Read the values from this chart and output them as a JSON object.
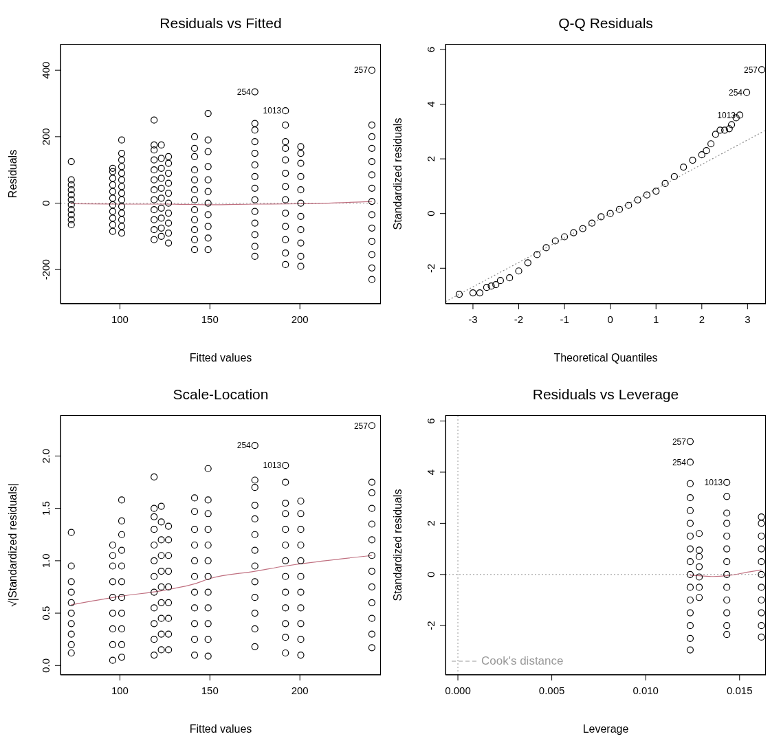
{
  "chart_data": [
    {
      "type": "scatter",
      "title": "Residuals vs Fitted",
      "xlabel": "Fitted values",
      "ylabel": "Residuals",
      "xlim": [
        67,
        245
      ],
      "xticks": [
        100,
        150,
        200
      ],
      "ylim": [
        -303,
        479
      ],
      "yticks": [
        -200,
        0,
        200,
        400
      ],
      "marker": "circle",
      "series": [
        {
          "color": "#000000",
          "x": [
            73,
            73,
            73,
            73,
            73,
            73,
            73,
            73,
            73,
            73,
            73
          ],
          "values": [
            -65,
            -50,
            -35,
            -20,
            -5,
            10,
            25,
            40,
            55,
            70,
            125
          ]
        },
        {
          "color": "#000000",
          "x": [
            96,
            96,
            96,
            96,
            96,
            96,
            96,
            96,
            96,
            96,
            96
          ],
          "values": [
            -85,
            -65,
            -45,
            -25,
            -5,
            15,
            35,
            55,
            75,
            95,
            105
          ]
        },
        {
          "color": "#000000",
          "x": [
            101,
            101,
            101,
            101,
            101,
            101,
            101,
            101,
            101,
            101,
            101,
            101,
            101,
            101
          ],
          "values": [
            -90,
            -70,
            -50,
            -30,
            -10,
            10,
            30,
            50,
            70,
            90,
            110,
            130,
            150,
            190
          ]
        },
        {
          "color": "#000000",
          "x": [
            119,
            119,
            119,
            119,
            119,
            119,
            119,
            119,
            119,
            119,
            119,
            119
          ],
          "values": [
            -110,
            -80,
            -50,
            -20,
            10,
            40,
            70,
            100,
            130,
            160,
            175,
            250
          ]
        },
        {
          "color": "#000000",
          "x": [
            123,
            123,
            123,
            123,
            123,
            123,
            123,
            123,
            123,
            123
          ],
          "values": [
            -100,
            -75,
            -45,
            -15,
            15,
            45,
            75,
            105,
            135,
            175
          ]
        },
        {
          "color": "#000000",
          "x": [
            127,
            127,
            127,
            127,
            127,
            127,
            127,
            127,
            127,
            127
          ],
          "values": [
            -120,
            -90,
            -60,
            -30,
            0,
            30,
            60,
            90,
            120,
            140
          ]
        },
        {
          "color": "#000000",
          "x": [
            141.5,
            141.5,
            141.5,
            141.5,
            141.5,
            141.5,
            141.5,
            141.5,
            141.5,
            141.5,
            141.5,
            141.5
          ],
          "values": [
            -140,
            -110,
            -80,
            -50,
            -20,
            10,
            40,
            70,
            100,
            140,
            165,
            200
          ]
        },
        {
          "color": "#000000",
          "x": [
            149,
            149,
            149,
            149,
            149,
            149,
            149,
            149,
            149,
            149,
            149
          ],
          "values": [
            -140,
            -105,
            -70,
            -35,
            0,
            35,
            70,
            110,
            155,
            190,
            270
          ]
        },
        {
          "color": "#000000",
          "x": [
            175,
            175,
            175,
            175,
            175,
            175,
            175,
            175,
            175,
            175,
            175,
            175,
            175,
            175
          ],
          "values": [
            -160,
            -130,
            -95,
            -60,
            -25,
            10,
            45,
            80,
            115,
            150,
            185,
            220,
            240,
            335
          ]
        },
        {
          "color": "#000000",
          "x": [
            192,
            192,
            192,
            192,
            192,
            192,
            192,
            192,
            192,
            192,
            192,
            192,
            192
          ],
          "values": [
            -185,
            -150,
            -110,
            -70,
            -30,
            10,
            50,
            90,
            130,
            165,
            185,
            235,
            278
          ]
        },
        {
          "color": "#000000",
          "x": [
            200.5,
            200.5,
            200.5,
            200.5,
            200.5,
            200.5,
            200.5,
            200.5,
            200.5,
            200.5,
            200.5
          ],
          "values": [
            -190,
            -160,
            -120,
            -80,
            -40,
            0,
            40,
            80,
            120,
            150,
            170
          ]
        },
        {
          "color": "#000000",
          "x": [
            240,
            240,
            240,
            240,
            240,
            240,
            240,
            240,
            240,
            240,
            240,
            240,
            240,
            240
          ],
          "values": [
            -230,
            -195,
            -155,
            -115,
            -75,
            -35,
            5,
            45,
            85,
            125,
            165,
            200,
            235,
            400
          ]
        },
        {
          "type": "line",
          "marker": "none",
          "color": "#c07080",
          "x": [
            73,
            100,
            125,
            150,
            175,
            200,
            240
          ],
          "values": [
            -2,
            -3,
            -3,
            -5,
            -3,
            -2,
            5
          ]
        }
      ],
      "ref_lines": [
        {
          "axis": "y",
          "value": 0,
          "color": "#999999",
          "line_style": "dotted"
        }
      ],
      "annotations": [
        {
          "text": "257",
          "x": 240,
          "y": 400
        },
        {
          "text": "254",
          "x": 175,
          "y": 335
        },
        {
          "text": "1013",
          "x": 192,
          "y": 278
        }
      ]
    },
    {
      "type": "scatter",
      "title": "Q-Q Residuals",
      "xlabel": "Theoretical Quantiles",
      "ylabel": "Standardized residuals",
      "xlim": [
        -3.6,
        3.4
      ],
      "xticks": [
        -3,
        -2,
        -1,
        0,
        1,
        2,
        3
      ],
      "ylim": [
        -3.3,
        6.2
      ],
      "yticks": [
        -2,
        0,
        2,
        4,
        6
      ],
      "marker": "circle",
      "series": [
        {
          "color": "#000000",
          "x": [
            -3.3,
            -3.0,
            -2.85,
            -2.7,
            -2.6,
            -2.5,
            -2.4,
            -2.2,
            -2.0,
            -1.8,
            -1.6,
            -1.4,
            -1.2,
            -1.0,
            -0.8,
            -0.6,
            -0.4,
            -0.2,
            0,
            0.2,
            0.4,
            0.6,
            0.8,
            1.0,
            1.2,
            1.4,
            1.6,
            1.8,
            2.0,
            2.1,
            2.2,
            2.3,
            2.4,
            2.5,
            2.6,
            2.65,
            2.75,
            2.83,
            2.98,
            3.31
          ],
          "values": [
            -2.95,
            -2.9,
            -2.9,
            -2.7,
            -2.65,
            -2.6,
            -2.45,
            -2.35,
            -2.1,
            -1.8,
            -1.5,
            -1.25,
            -1.0,
            -0.85,
            -0.7,
            -0.55,
            -0.35,
            -0.12,
            0,
            0.15,
            0.3,
            0.5,
            0.68,
            0.82,
            1.1,
            1.35,
            1.7,
            1.95,
            2.15,
            2.3,
            2.55,
            2.9,
            3.05,
            3.05,
            3.1,
            3.25,
            3.5,
            3.6,
            4.43,
            5.26
          ]
        },
        {
          "type": "line",
          "marker": "none",
          "color": "#888888",
          "line_style": "dotted",
          "x": [
            -3.6,
            3.4
          ],
          "values": [
            -3.22,
            3.05
          ]
        }
      ],
      "annotations": [
        {
          "text": "257",
          "x": 3.31,
          "y": 5.26
        },
        {
          "text": "254",
          "x": 2.98,
          "y": 4.43
        },
        {
          "text": "1013",
          "x": 2.83,
          "y": 3.6
        }
      ]
    },
    {
      "type": "scatter",
      "title": "Scale-Location",
      "xlabel": "Fitted values",
      "ylabel": "√|Standardized residuals|",
      "xlim": [
        67,
        245
      ],
      "xticks": [
        100,
        150,
        200
      ],
      "ylim": [
        -0.09,
        2.39
      ],
      "yticks": [
        {
          "value": 0,
          "label": "0.0"
        },
        {
          "value": 0.5,
          "label": "0.5"
        },
        {
          "value": 1,
          "label": "1.0"
        },
        {
          "value": 1.5,
          "label": "1.5"
        },
        {
          "value": 2,
          "label": "2.0"
        }
      ],
      "marker": "circle",
      "series": [
        {
          "color": "#000000",
          "x": [
            73,
            73,
            73,
            73,
            73,
            73,
            73,
            73,
            73,
            73
          ],
          "values": [
            0.12,
            0.2,
            0.3,
            0.4,
            0.5,
            0.6,
            0.7,
            0.8,
            0.95,
            1.27
          ]
        },
        {
          "color": "#000000",
          "x": [
            96,
            96,
            96,
            96,
            96,
            96,
            96,
            96,
            96
          ],
          "values": [
            0.05,
            0.2,
            0.35,
            0.5,
            0.65,
            0.8,
            0.95,
            1.05,
            1.15
          ]
        },
        {
          "color": "#000000",
          "x": [
            101,
            101,
            101,
            101,
            101,
            101,
            101,
            101,
            101,
            101,
            101
          ],
          "values": [
            0.08,
            0.2,
            0.35,
            0.5,
            0.65,
            0.8,
            0.95,
            1.1,
            1.25,
            1.38,
            1.58
          ]
        },
        {
          "color": "#000000",
          "x": [
            119,
            119,
            119,
            119,
            119,
            119,
            119,
            119,
            119,
            119,
            119,
            119
          ],
          "values": [
            0.1,
            0.25,
            0.4,
            0.55,
            0.7,
            0.85,
            1.0,
            1.15,
            1.3,
            1.42,
            1.5,
            1.8
          ]
        },
        {
          "color": "#000000",
          "x": [
            123,
            123,
            123,
            123,
            123,
            123,
            123,
            123,
            123,
            123
          ],
          "values": [
            0.15,
            0.3,
            0.45,
            0.6,
            0.75,
            0.9,
            1.05,
            1.2,
            1.37,
            1.52
          ]
        },
        {
          "color": "#000000",
          "x": [
            127,
            127,
            127,
            127,
            127,
            127,
            127,
            127,
            127
          ],
          "values": [
            0.15,
            0.3,
            0.45,
            0.6,
            0.75,
            0.9,
            1.05,
            1.2,
            1.33
          ]
        },
        {
          "color": "#000000",
          "x": [
            141.5,
            141.5,
            141.5,
            141.5,
            141.5,
            141.5,
            141.5,
            141.5,
            141.5,
            141.5,
            141.5
          ],
          "values": [
            0.1,
            0.25,
            0.4,
            0.55,
            0.7,
            0.85,
            1.0,
            1.15,
            1.3,
            1.47,
            1.6
          ]
        },
        {
          "color": "#000000",
          "x": [
            149,
            149,
            149,
            149,
            149,
            149,
            149,
            149,
            149,
            149,
            149,
            149
          ],
          "values": [
            0.09,
            0.25,
            0.4,
            0.55,
            0.7,
            0.85,
            1.0,
            1.15,
            1.3,
            1.45,
            1.58,
            1.88
          ]
        },
        {
          "color": "#000000",
          "x": [
            175,
            175,
            175,
            175,
            175,
            175,
            175,
            175,
            175,
            175,
            175,
            175,
            175
          ],
          "values": [
            0.18,
            0.35,
            0.5,
            0.65,
            0.8,
            0.95,
            1.1,
            1.25,
            1.4,
            1.53,
            1.7,
            1.77,
            2.1
          ]
        },
        {
          "color": "#000000",
          "x": [
            192,
            192,
            192,
            192,
            192,
            192,
            192,
            192,
            192,
            192,
            192,
            192,
            192
          ],
          "values": [
            0.12,
            0.27,
            0.4,
            0.55,
            0.7,
            0.85,
            1.0,
            1.15,
            1.3,
            1.45,
            1.55,
            1.75,
            1.91
          ]
        },
        {
          "color": "#000000",
          "x": [
            200.5,
            200.5,
            200.5,
            200.5,
            200.5,
            200.5,
            200.5,
            200.5,
            200.5,
            200.5,
            200.5
          ],
          "values": [
            0.1,
            0.25,
            0.4,
            0.55,
            0.7,
            0.85,
            1.0,
            1.15,
            1.3,
            1.45,
            1.57
          ]
        },
        {
          "color": "#000000",
          "x": [
            240,
            240,
            240,
            240,
            240,
            240,
            240,
            240,
            240,
            240,
            240,
            240,
            240
          ],
          "values": [
            0.17,
            0.3,
            0.45,
            0.6,
            0.75,
            0.9,
            1.05,
            1.2,
            1.35,
            1.5,
            1.65,
            1.75,
            2.29
          ]
        },
        {
          "type": "line",
          "marker": "none",
          "color": "#c07080",
          "x": [
            73,
            100,
            125,
            141.5,
            150,
            175,
            192,
            200,
            240
          ],
          "values": [
            0.58,
            0.66,
            0.72,
            0.78,
            0.83,
            0.9,
            0.95,
            0.97,
            1.05
          ]
        }
      ],
      "annotations": [
        {
          "text": "257",
          "x": 240,
          "y": 2.29
        },
        {
          "text": "254",
          "x": 175,
          "y": 2.1
        },
        {
          "text": "1013",
          "x": 192,
          "y": 1.91
        }
      ]
    },
    {
      "type": "scatter",
      "title": "Residuals vs Leverage",
      "xlabel": "Leverage",
      "ylabel": "Standardized residuals",
      "xlim": [
        -0.00066,
        0.0164
      ],
      "xticks": [
        {
          "value": 0,
          "label": "0.000"
        },
        {
          "value": 0.005,
          "label": "0.005"
        },
        {
          "value": 0.01,
          "label": "0.010"
        },
        {
          "value": 0.015,
          "label": "0.015"
        }
      ],
      "ylim": [
        -3.93,
        6.23
      ],
      "yticks": [
        -2,
        0,
        2,
        4,
        6
      ],
      "marker": "circle",
      "legend": "bottom left",
      "series": [
        {
          "color": "#000000",
          "x": [
            0.01237,
            0.01237,
            0.01237,
            0.01237,
            0.01237,
            0.01237,
            0.01237,
            0.01237,
            0.01237,
            0.01237,
            0.01237,
            0.01237,
            0.01237,
            0.01237,
            0.01237,
            0.01237
          ],
          "values": [
            -2.95,
            -2.5,
            -2,
            -1.5,
            -1,
            -0.5,
            0,
            0.5,
            1,
            1.5,
            2,
            2.5,
            3,
            3.55,
            4.39,
            5.2
          ]
        },
        {
          "color": "#000000",
          "x": [
            0.01285,
            0.01285,
            0.01285,
            0.01285,
            0.01285,
            0.01285,
            0.01285
          ],
          "values": [
            -0.9,
            -0.5,
            -0.1,
            0.3,
            0.7,
            0.95,
            1.6
          ]
        },
        {
          "color": "#000000",
          "x": [
            0.01432,
            0.01432,
            0.01432,
            0.01432,
            0.01432,
            0.01432,
            0.01432,
            0.01432,
            0.01432,
            0.01432,
            0.01432,
            0.01432,
            0.01432
          ],
          "values": [
            -2.35,
            -2,
            -1.5,
            -1,
            -0.5,
            0,
            0.5,
            1,
            1.5,
            2,
            2.4,
            3.05,
            3.6
          ]
        },
        {
          "color": "#000000",
          "x": [
            0.01616,
            0.01616,
            0.01616,
            0.01616,
            0.01616,
            0.01616,
            0.01616,
            0.01616,
            0.01616,
            0.01616,
            0.01616
          ],
          "values": [
            -2.45,
            -2,
            -1.5,
            -1,
            -0.5,
            0,
            0.5,
            1,
            1.5,
            2,
            2.25
          ]
        },
        {
          "type": "line",
          "marker": "none",
          "color": "#c07080",
          "x": [
            0.01237,
            0.01285,
            0.0136,
            0.01432,
            0.0155,
            0.01616
          ],
          "values": [
            -0.03,
            -0.05,
            -0.08,
            -0.05,
            0.1,
            0.18
          ]
        },
        {
          "type": "line",
          "name": "Cook's distance",
          "color": "#999999",
          "line_style": "dashed",
          "marker": "none"
        }
      ],
      "ref_lines": [
        {
          "axis": "y",
          "value": 0,
          "color": "#999999",
          "line_style": "dotted"
        },
        {
          "axis": "x",
          "value": 0,
          "color": "#999999",
          "line_style": "dotted"
        }
      ],
      "annotations": [
        {
          "text": "257",
          "x": 0.01237,
          "y": 5.2
        },
        {
          "text": "254",
          "x": 0.01237,
          "y": 4.39
        },
        {
          "text": "1013",
          "x": 0.01432,
          "y": 3.6
        }
      ]
    }
  ]
}
